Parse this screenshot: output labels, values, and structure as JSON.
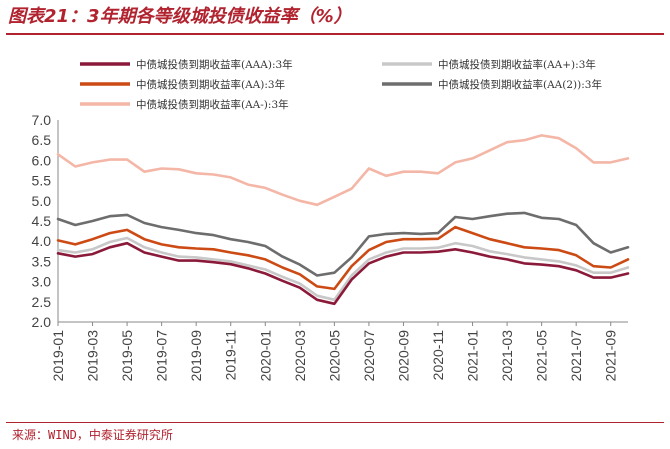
{
  "figure": {
    "title": "图表21：3年期各等级城投债收益率（%）",
    "source": "来源：WIND，中泰证券研究所"
  },
  "chart_data": {
    "type": "line",
    "title": "图表21：3年期各等级城投债收益率（%）",
    "xlabel": "",
    "ylabel": "",
    "ylim": [
      2.0,
      7.0
    ],
    "yticks": [
      "7.0",
      "6.5",
      "6.0",
      "5.5",
      "5.0",
      "4.5",
      "4.0",
      "3.5",
      "3.0",
      "2.5",
      "2.0"
    ],
    "xticks": [
      "2019-01",
      "2019-03",
      "2019-05",
      "2019-07",
      "2019-09",
      "2019-11",
      "2020-01",
      "2020-03",
      "2020-05",
      "2020-07",
      "2020-09",
      "2020-11",
      "2021-01",
      "2021-03",
      "2021-05",
      "2021-07",
      "2021-09"
    ],
    "grid": false,
    "legend_position": "top",
    "x": [
      "2019-01",
      "2019-02",
      "2019-03",
      "2019-04",
      "2019-05",
      "2019-06",
      "2019-07",
      "2019-08",
      "2019-09",
      "2019-10",
      "2019-11",
      "2019-12",
      "2020-01",
      "2020-02",
      "2020-03",
      "2020-04",
      "2020-05",
      "2020-06",
      "2020-07",
      "2020-08",
      "2020-09",
      "2020-10",
      "2020-11",
      "2020-12",
      "2021-01",
      "2021-02",
      "2021-03",
      "2021-04",
      "2021-05",
      "2021-06",
      "2021-07",
      "2021-08",
      "2021-09",
      "2021-10"
    ],
    "series": [
      {
        "name": "中债城投债到期收益率(AAA):3年",
        "color": "#8b1a3a",
        "values": [
          3.7,
          3.62,
          3.68,
          3.85,
          3.95,
          3.72,
          3.62,
          3.52,
          3.52,
          3.48,
          3.43,
          3.33,
          3.2,
          3.02,
          2.85,
          2.55,
          2.45,
          3.05,
          3.45,
          3.62,
          3.72,
          3.72,
          3.74,
          3.8,
          3.72,
          3.62,
          3.55,
          3.45,
          3.42,
          3.38,
          3.28,
          3.1,
          3.1,
          3.2
        ]
      },
      {
        "name": "中债城投债到期收益率(AA+):3年",
        "color": "#c8c8c8",
        "values": [
          3.78,
          3.72,
          3.8,
          3.98,
          4.08,
          3.85,
          3.72,
          3.62,
          3.6,
          3.55,
          3.5,
          3.4,
          3.3,
          3.12,
          2.95,
          2.65,
          2.55,
          3.15,
          3.55,
          3.72,
          3.82,
          3.82,
          3.84,
          3.95,
          3.88,
          3.75,
          3.68,
          3.6,
          3.55,
          3.5,
          3.4,
          3.22,
          3.22,
          3.35
        ]
      },
      {
        "name": "中债城投债到期收益率(AA):3年",
        "color": "#cc4a14",
        "values": [
          4.02,
          3.92,
          4.05,
          4.2,
          4.28,
          4.05,
          3.92,
          3.85,
          3.82,
          3.8,
          3.72,
          3.65,
          3.55,
          3.35,
          3.18,
          2.88,
          2.82,
          3.38,
          3.78,
          3.98,
          4.05,
          4.05,
          4.06,
          4.35,
          4.2,
          4.05,
          3.95,
          3.85,
          3.82,
          3.78,
          3.65,
          3.38,
          3.35,
          3.55
        ]
      },
      {
        "name": "中债城投债到期收益率(AA(2)):3年",
        "color": "#6d6d6d",
        "values": [
          4.55,
          4.4,
          4.5,
          4.62,
          4.65,
          4.45,
          4.35,
          4.28,
          4.2,
          4.15,
          4.05,
          3.98,
          3.88,
          3.62,
          3.42,
          3.15,
          3.22,
          3.6,
          4.12,
          4.18,
          4.2,
          4.18,
          4.2,
          4.6,
          4.55,
          4.62,
          4.68,
          4.7,
          4.58,
          4.55,
          4.4,
          3.95,
          3.72,
          3.85
        ]
      },
      {
        "name": "中债城投债到期收益率(AA-):3年",
        "color": "#f4b6a6",
        "values": [
          6.15,
          5.85,
          5.95,
          6.02,
          6.02,
          5.72,
          5.8,
          5.78,
          5.68,
          5.65,
          5.58,
          5.4,
          5.32,
          5.15,
          5.0,
          4.9,
          5.1,
          5.3,
          5.8,
          5.62,
          5.72,
          5.72,
          5.68,
          5.95,
          6.05,
          6.25,
          6.45,
          6.5,
          6.62,
          6.55,
          6.3,
          5.95,
          5.95,
          6.05
        ]
      }
    ]
  }
}
